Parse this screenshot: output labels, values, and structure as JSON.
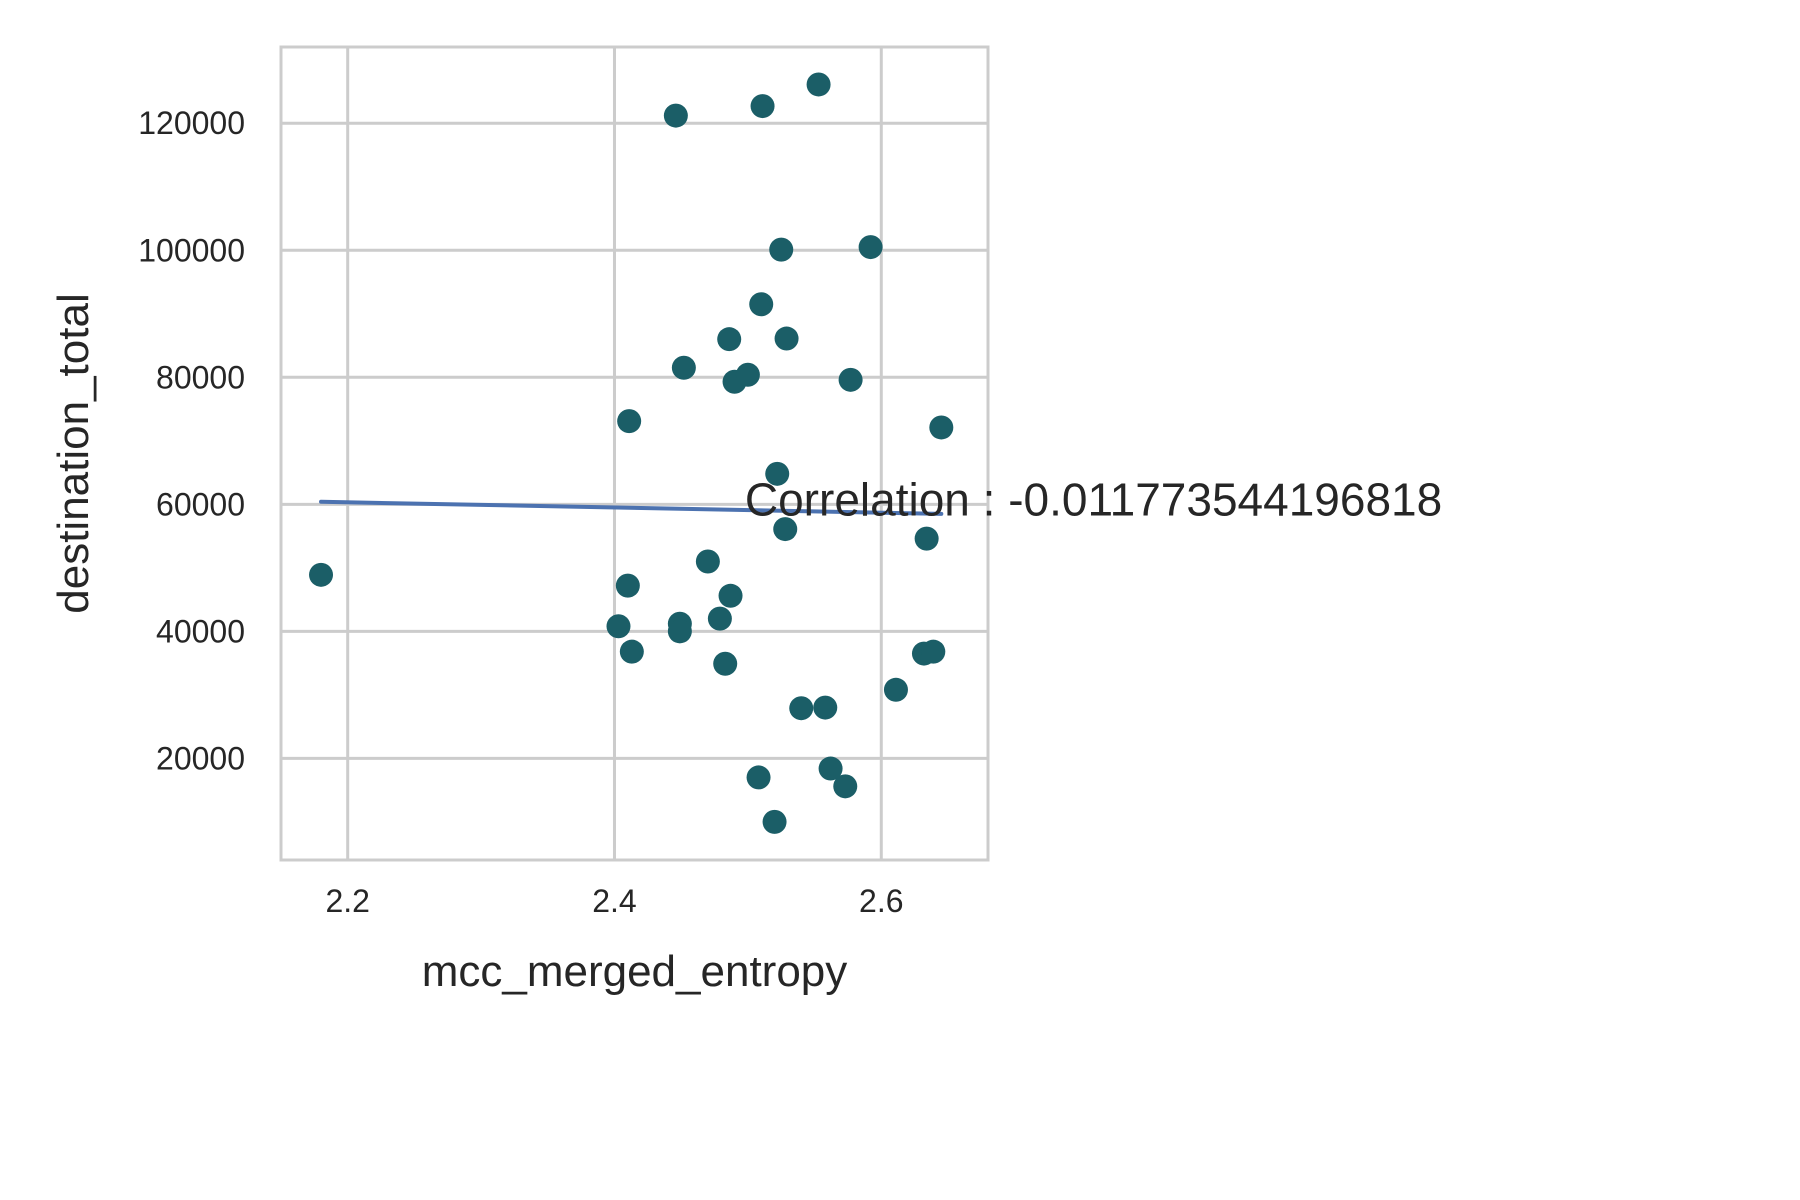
{
  "chart_data": {
    "type": "scatter",
    "title": "",
    "xlabel": "mcc_merged_entropy",
    "ylabel": "destination_total",
    "xlim": [
      2.15,
      2.68
    ],
    "ylim": [
      4000,
      132000
    ],
    "x_ticks": [
      {
        "value": 2.2,
        "label": "2.2"
      },
      {
        "value": 2.4,
        "label": "2.4"
      },
      {
        "value": 2.6,
        "label": "2.6"
      }
    ],
    "y_ticks": [
      {
        "value": 20000,
        "label": "20000"
      },
      {
        "value": 40000,
        "label": "40000"
      },
      {
        "value": 60000,
        "label": "60000"
      },
      {
        "value": 80000,
        "label": "80000"
      },
      {
        "value": 100000,
        "label": "100000"
      },
      {
        "value": 120000,
        "label": "120000"
      }
    ],
    "grid": true,
    "points": [
      {
        "x": 2.18,
        "y": 48900
      },
      {
        "x": 2.403,
        "y": 40800
      },
      {
        "x": 2.41,
        "y": 47200
      },
      {
        "x": 2.411,
        "y": 73100
      },
      {
        "x": 2.413,
        "y": 36800
      },
      {
        "x": 2.446,
        "y": 121200
      },
      {
        "x": 2.449,
        "y": 41200
      },
      {
        "x": 2.449,
        "y": 40000
      },
      {
        "x": 2.452,
        "y": 81500
      },
      {
        "x": 2.47,
        "y": 51000
      },
      {
        "x": 2.479,
        "y": 42000
      },
      {
        "x": 2.483,
        "y": 34900
      },
      {
        "x": 2.486,
        "y": 86000
      },
      {
        "x": 2.487,
        "y": 45600
      },
      {
        "x": 2.49,
        "y": 79300
      },
      {
        "x": 2.5,
        "y": 80400
      },
      {
        "x": 2.508,
        "y": 17000
      },
      {
        "x": 2.51,
        "y": 91500
      },
      {
        "x": 2.511,
        "y": 122700
      },
      {
        "x": 2.52,
        "y": 10000
      },
      {
        "x": 2.522,
        "y": 64800
      },
      {
        "x": 2.525,
        "y": 100100
      },
      {
        "x": 2.528,
        "y": 56100
      },
      {
        "x": 2.529,
        "y": 86100
      },
      {
        "x": 2.54,
        "y": 27900
      },
      {
        "x": 2.553,
        "y": 126100
      },
      {
        "x": 2.558,
        "y": 28000
      },
      {
        "x": 2.562,
        "y": 18400
      },
      {
        "x": 2.573,
        "y": 15600
      },
      {
        "x": 2.577,
        "y": 79600
      },
      {
        "x": 2.592,
        "y": 100500
      },
      {
        "x": 2.611,
        "y": 30800
      },
      {
        "x": 2.632,
        "y": 36500
      },
      {
        "x": 2.634,
        "y": 54600
      },
      {
        "x": 2.639,
        "y": 36800
      },
      {
        "x": 2.645,
        "y": 72100
      }
    ],
    "trend_line": [
      {
        "x": 2.18,
        "y": 60400
      },
      {
        "x": 2.645,
        "y": 58500
      }
    ],
    "annotation": {
      "text": "Correlation : -0.011773544196818",
      "x": 2.5,
      "y": 59000
    },
    "colors": {
      "points": "#1b5e67",
      "trend_line": "#4c72b0",
      "grid": "#cccccc",
      "axes_frame": "#cccccc",
      "text": "#262626"
    }
  }
}
